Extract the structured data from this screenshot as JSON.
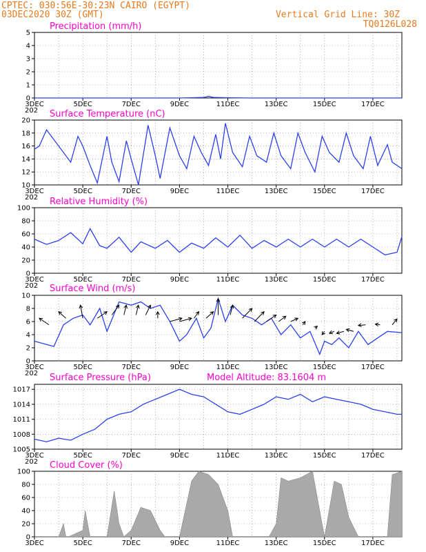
{
  "header": {
    "line1": "CPTEC:   030:56E-30:23N   CAIRO (EGYPT)",
    "line2": "03DEC2020 30Z (GMT)",
    "right1": "Vertical Grid Line: 30Z",
    "right2": "TQ0126L028"
  },
  "x_axis": {
    "labels": [
      "3DEC",
      "5DEC",
      "7DEC",
      "9DEC",
      "11DEC",
      "13DEC",
      "15DEC",
      "17DEC"
    ],
    "sub_label": "202"
  },
  "panels": {
    "precip": {
      "title": "Precipitation (mm/h)",
      "yticks": [
        0,
        1,
        2,
        3,
        4,
        5
      ]
    },
    "temp": {
      "title": "Surface Temperature (nC)",
      "yticks": [
        10,
        12,
        14,
        16,
        18,
        20
      ]
    },
    "rh": {
      "title": "Relative Humidity (%)",
      "yticks": [
        0,
        20,
        40,
        60,
        80,
        100
      ]
    },
    "wind": {
      "title": "Surface Wind (m/s)",
      "yticks": [
        0,
        2,
        4,
        6,
        8,
        10
      ]
    },
    "pres": {
      "title": "Surface Pressure (hPa)",
      "extra": "Model Altitude: 83.1604 m",
      "yticks": [
        1005,
        1008,
        1011,
        1014,
        1017
      ]
    },
    "cloud": {
      "title": "Cloud Cover (%)",
      "yticks": [
        0,
        20,
        40,
        60,
        80,
        100
      ]
    }
  },
  "colors": {
    "line": "#2a3ff0",
    "title": "#ff00cc",
    "header": "#e8791e",
    "cloud": "#a9a9a9"
  },
  "chart_data": [
    {
      "type": "line",
      "title": "Precipitation (mm/h)",
      "ylim": [
        0,
        5
      ],
      "x": [
        3,
        4,
        5,
        6,
        7,
        8,
        9,
        9.5,
        10,
        10.2,
        10.4,
        11,
        12,
        13,
        14,
        15,
        16,
        17,
        18.2
      ],
      "series": [
        {
          "values": [
            0,
            0,
            0,
            0,
            0,
            0,
            0,
            0.02,
            0.04,
            0.12,
            0.05,
            0.02,
            0,
            0,
            0,
            0,
            0,
            0,
            0
          ]
        }
      ]
    },
    {
      "type": "line",
      "title": "Surface Temperature (nC)",
      "ylim": [
        10,
        20
      ],
      "x": [
        3.0,
        3.2,
        3.5,
        4.0,
        4.5,
        4.8,
        5.0,
        5.3,
        5.6,
        6.0,
        6.2,
        6.5,
        6.8,
        7.0,
        7.3,
        7.7,
        8.0,
        8.2,
        8.6,
        9.0,
        9.3,
        9.6,
        9.9,
        10.2,
        10.5,
        10.7,
        10.9,
        11.2,
        11.6,
        11.9,
        12.2,
        12.6,
        12.9,
        13.2,
        13.6,
        13.9,
        14.2,
        14.6,
        14.9,
        15.2,
        15.6,
        15.9,
        16.2,
        16.6,
        16.9,
        17.2,
        17.6,
        17.8,
        18.2
      ],
      "series": [
        {
          "values": [
            15.5,
            16.0,
            18.5,
            16.0,
            13.5,
            17.5,
            16.0,
            13.0,
            10.3,
            17.5,
            13.5,
            10.5,
            16.8,
            14.0,
            10.0,
            19.2,
            14.5,
            11.0,
            18.8,
            14.5,
            12.5,
            17.5,
            15.0,
            13.0,
            17.8,
            14.0,
            19.5,
            15.0,
            12.8,
            17.5,
            14.5,
            13.5,
            18.0,
            14.5,
            12.5,
            18.0,
            15.0,
            12.0,
            17.5,
            15.0,
            13.5,
            18.0,
            14.5,
            12.5,
            17.5,
            13.0,
            16.2,
            13.5,
            12.5
          ]
        }
      ]
    },
    {
      "type": "line",
      "title": "Relative Humidity (%)",
      "ylim": [
        0,
        100
      ],
      "x": [
        3.0,
        3.5,
        4.0,
        4.5,
        5.0,
        5.3,
        5.7,
        6.0,
        6.5,
        7.0,
        7.4,
        8.0,
        8.5,
        9.0,
        9.5,
        10.0,
        10.5,
        11.0,
        11.5,
        12.0,
        12.5,
        13.0,
        13.5,
        14.0,
        14.5,
        15.0,
        15.5,
        16.0,
        16.5,
        17.0,
        17.5,
        18.0,
        18.2
      ],
      "series": [
        {
          "values": [
            52,
            44,
            50,
            62,
            45,
            68,
            42,
            38,
            55,
            32,
            48,
            38,
            50,
            32,
            46,
            38,
            54,
            40,
            58,
            38,
            50,
            40,
            52,
            40,
            52,
            40,
            52,
            40,
            52,
            40,
            28,
            32,
            56
          ]
        }
      ]
    },
    {
      "type": "line",
      "title": "Surface Wind (m/s)",
      "ylim": [
        0,
        10
      ],
      "x": [
        3.0,
        3.5,
        3.8,
        4.2,
        4.6,
        5.0,
        5.3,
        5.7,
        6.0,
        6.5,
        7.0,
        7.4,
        7.8,
        8.2,
        8.6,
        9.0,
        9.3,
        9.7,
        10.0,
        10.3,
        10.6,
        10.9,
        11.2,
        11.6,
        12.0,
        12.4,
        12.8,
        13.2,
        13.6,
        14.0,
        14.4,
        14.8,
        15.0,
        15.3,
        15.6,
        16.0,
        16.4,
        16.8,
        17.2,
        17.6,
        18.2
      ],
      "series": [
        {
          "values": [
            3,
            2.5,
            2.2,
            5.5,
            6.5,
            7,
            5.5,
            8,
            4.5,
            9,
            8.5,
            9,
            8,
            8.5,
            6,
            3,
            4,
            6.5,
            3.5,
            5,
            9.5,
            6,
            8.5,
            7,
            6.5,
            5.5,
            6.5,
            4,
            5.5,
            3.5,
            4.5,
            1,
            3,
            2.5,
            3.5,
            2,
            4.5,
            2.5,
            3.5,
            4.5,
            4.3
          ]
        }
      ]
    },
    {
      "type": "line",
      "title": "Surface Pressure (hPa)",
      "ylim": [
        1005,
        1018
      ],
      "x": [
        3.0,
        3.5,
        4.0,
        4.5,
        5.0,
        5.5,
        6.0,
        6.5,
        7.0,
        7.5,
        8.0,
        8.5,
        9.0,
        9.5,
        10.0,
        10.5,
        11.0,
        11.5,
        12.0,
        12.5,
        13.0,
        13.5,
        14.0,
        14.5,
        15.0,
        15.5,
        16.0,
        16.5,
        17.0,
        17.5,
        18.0,
        18.2
      ],
      "series": [
        {
          "values": [
            1007,
            1006.5,
            1007.2,
            1006.8,
            1008,
            1009,
            1011,
            1012,
            1012.5,
            1014,
            1015,
            1016,
            1017,
            1016,
            1015.5,
            1014,
            1012.5,
            1012,
            1013,
            1014,
            1015.5,
            1015,
            1016,
            1014.5,
            1015.5,
            1015,
            1014.5,
            1014,
            1013,
            1012.5,
            1012,
            1012
          ]
        }
      ]
    },
    {
      "type": "area",
      "title": "Cloud Cover (%)",
      "ylim": [
        0,
        100
      ],
      "x": [
        3.0,
        4.0,
        4.2,
        4.3,
        4.4,
        5.0,
        5.1,
        5.3,
        5.5,
        6.0,
        6.3,
        6.5,
        6.7,
        7.0,
        7.4,
        7.8,
        8.2,
        8.4,
        8.6,
        9.0,
        9.5,
        9.8,
        10.2,
        10.6,
        11.0,
        11.2,
        11.5,
        12.0,
        12.7,
        13.0,
        13.2,
        13.5,
        14.0,
        14.5,
        14.9,
        15.0,
        15.4,
        15.7,
        16.0,
        16.4,
        17.0,
        17.6,
        17.8,
        18.2
      ],
      "series": [
        {
          "values": [
            0,
            0,
            20,
            0,
            0,
            10,
            40,
            0,
            0,
            0,
            70,
            20,
            0,
            10,
            45,
            40,
            10,
            0,
            0,
            0,
            85,
            100,
            95,
            80,
            40,
            0,
            0,
            0,
            0,
            20,
            90,
            85,
            90,
            100,
            20,
            0,
            85,
            80,
            30,
            0,
            0,
            0,
            95,
            100
          ]
        }
      ]
    }
  ]
}
